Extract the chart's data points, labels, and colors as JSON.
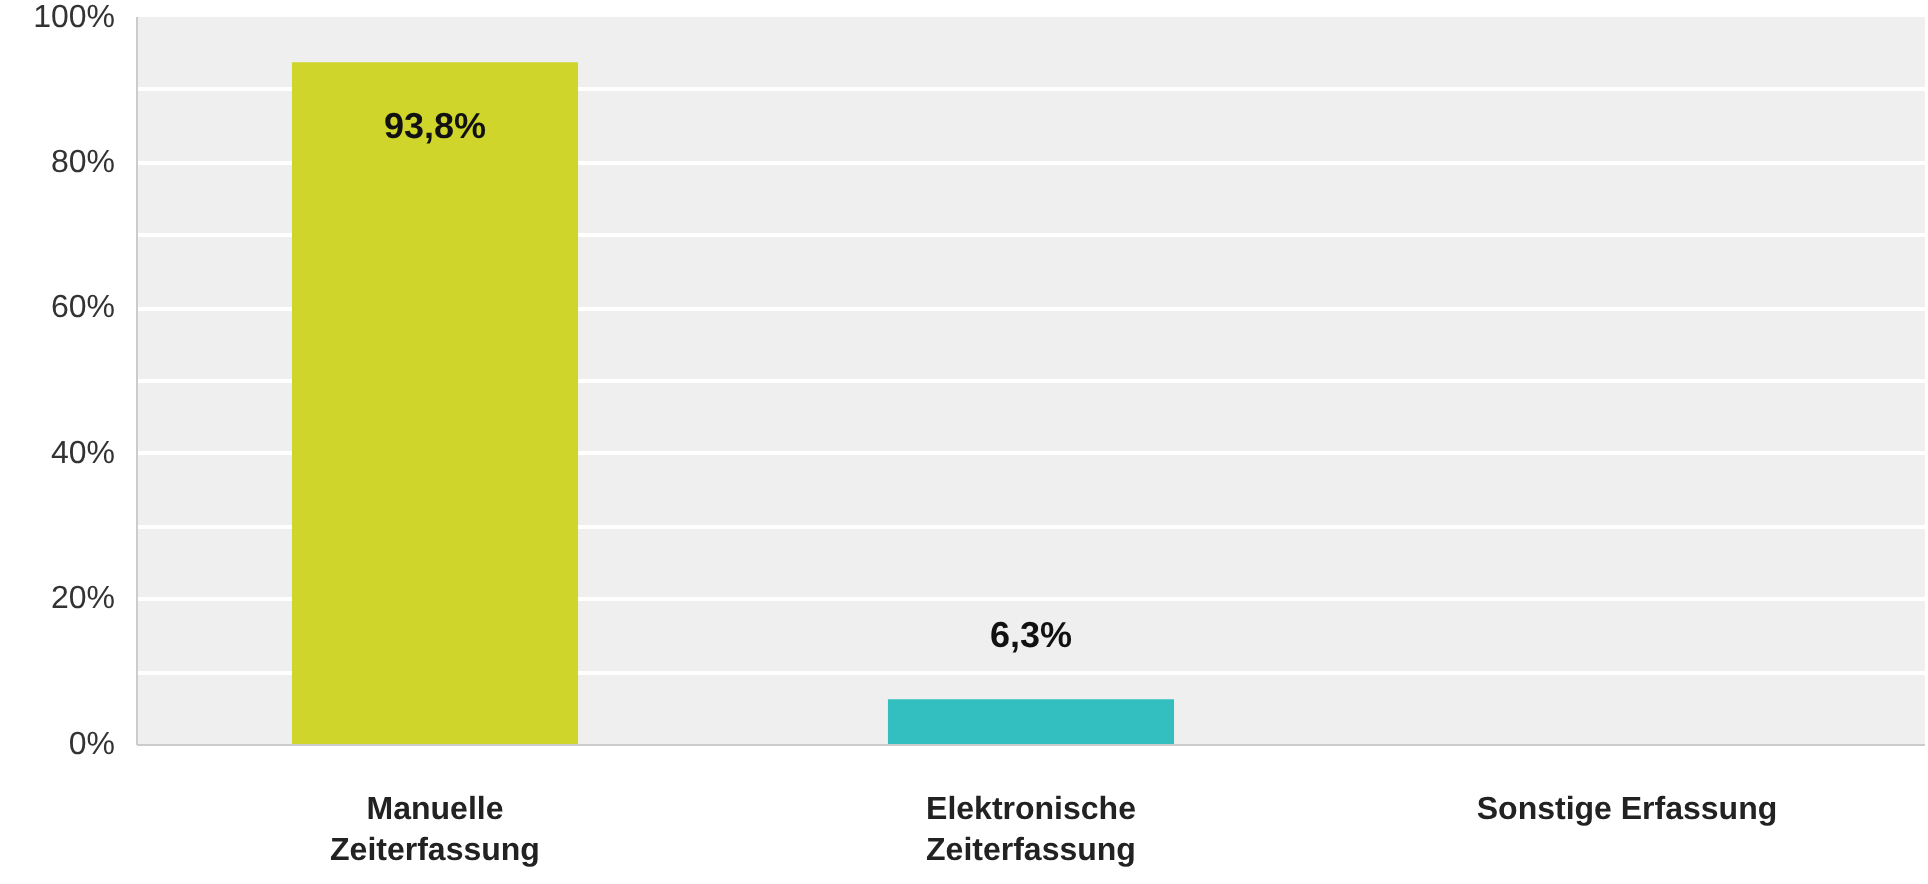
{
  "chart_data": {
    "type": "bar",
    "categories": [
      "Manuelle\nZeiterfassung",
      "Elektronische\nZeiterfassung",
      "Sonstige Erfassung"
    ],
    "values": [
      93.8,
      6.3,
      0
    ],
    "colors": [
      "#cfd52a",
      "#33bfbf",
      "#8c8c8c"
    ],
    "value_labels": [
      "93,8%",
      "6,3%",
      null
    ],
    "ylim": [
      0,
      100
    ],
    "yticks": [
      {
        "value": 0,
        "label": "0%"
      },
      {
        "value": 10,
        "label": null
      },
      {
        "value": 20,
        "label": "20%"
      },
      {
        "value": 30,
        "label": null
      },
      {
        "value": 40,
        "label": "40%"
      },
      {
        "value": 50,
        "label": null
      },
      {
        "value": 60,
        "label": "60%"
      },
      {
        "value": 70,
        "label": null
      },
      {
        "value": 80,
        "label": "80%"
      },
      {
        "value": 90,
        "label": null
      },
      {
        "value": 100,
        "label": "100%"
      }
    ],
    "grid": "y"
  }
}
